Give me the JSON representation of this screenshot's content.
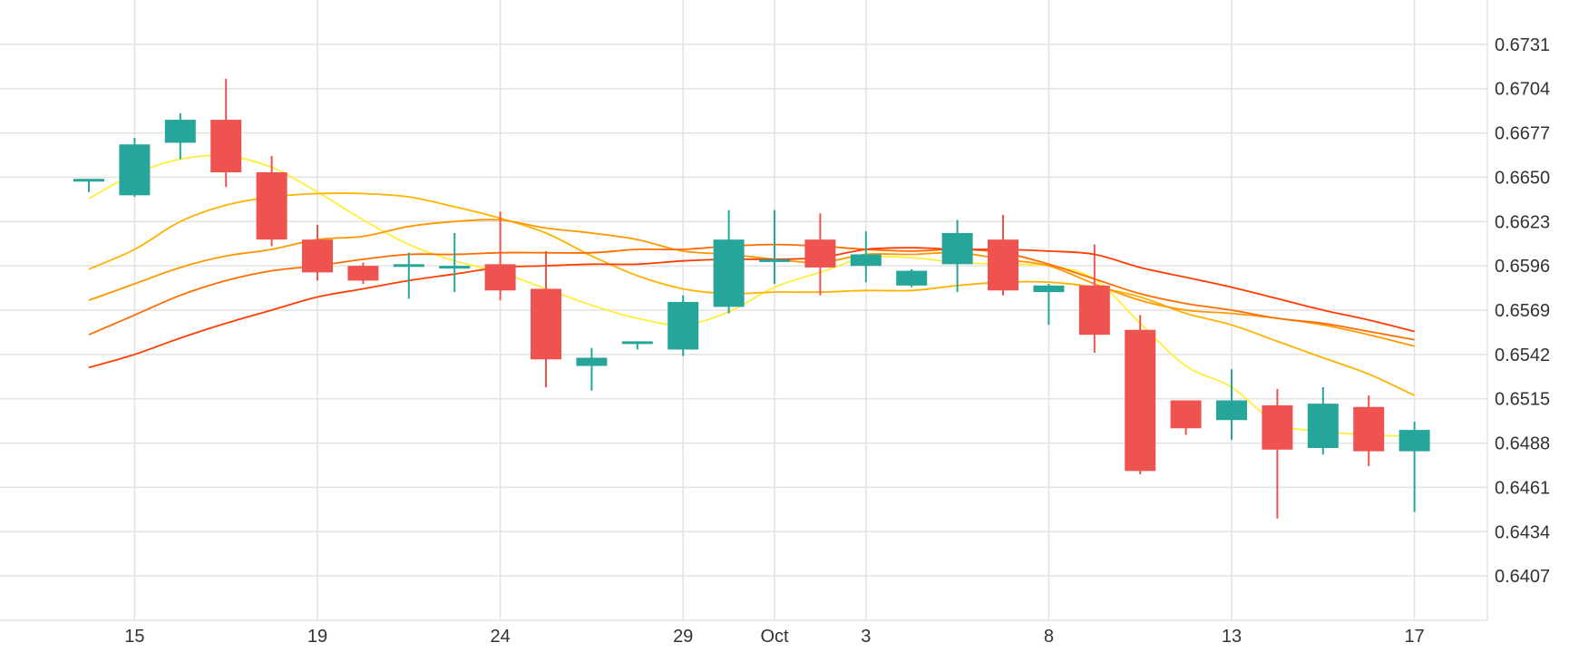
{
  "chart_data": {
    "type": "candlestick",
    "x_ticks": [
      {
        "label": "15",
        "index": 1
      },
      {
        "label": "19",
        "index": 5
      },
      {
        "label": "24",
        "index": 9
      },
      {
        "label": "29",
        "index": 13
      },
      {
        "label": "Oct",
        "index": 15
      },
      {
        "label": "3",
        "index": 17
      },
      {
        "label": "8",
        "index": 21
      },
      {
        "label": "13",
        "index": 25
      },
      {
        "label": "17",
        "index": 29
      }
    ],
    "y_ticks": [
      "0.6731",
      "0.6704",
      "0.6677",
      "0.6650",
      "0.6623",
      "0.6596",
      "0.6569",
      "0.6542",
      "0.6515",
      "0.6488",
      "0.6461",
      "0.6434",
      "0.6407"
    ],
    "ylim": [
      0.638,
      0.6758
    ],
    "grid": true,
    "colors": {
      "up": "#26a69a",
      "down": "#ef5350",
      "grid": "#e3e3e3"
    },
    "candles": [
      {
        "o": 0.6648,
        "h": 0.6649,
        "l": 0.6641,
        "c": 0.6649
      },
      {
        "o": 0.6639,
        "h": 0.6674,
        "l": 0.6638,
        "c": 0.667
      },
      {
        "o": 0.6671,
        "h": 0.6689,
        "l": 0.6661,
        "c": 0.6685
      },
      {
        "o": 0.6685,
        "h": 0.671,
        "l": 0.6644,
        "c": 0.6653
      },
      {
        "o": 0.6653,
        "h": 0.6663,
        "l": 0.6608,
        "c": 0.6612
      },
      {
        "o": 0.6612,
        "h": 0.6621,
        "l": 0.6587,
        "c": 0.6592
      },
      {
        "o": 0.6596,
        "h": 0.6598,
        "l": 0.6585,
        "c": 0.6587
      },
      {
        "o": 0.6596,
        "h": 0.6604,
        "l": 0.6576,
        "c": 0.6597
      },
      {
        "o": 0.6596,
        "h": 0.6616,
        "l": 0.658,
        "c": 0.6596
      },
      {
        "o": 0.6597,
        "h": 0.6629,
        "l": 0.6575,
        "c": 0.6581
      },
      {
        "o": 0.6582,
        "h": 0.6605,
        "l": 0.6522,
        "c": 0.6539
      },
      {
        "o": 0.6535,
        "h": 0.6546,
        "l": 0.652,
        "c": 0.654
      },
      {
        "o": 0.6549,
        "h": 0.655,
        "l": 0.6545,
        "c": 0.655
      },
      {
        "o": 0.6545,
        "h": 0.6578,
        "l": 0.6541,
        "c": 0.6574
      },
      {
        "o": 0.6571,
        "h": 0.663,
        "l": 0.6567,
        "c": 0.6612
      },
      {
        "o": 0.66,
        "h": 0.663,
        "l": 0.6585,
        "c": 0.66
      },
      {
        "o": 0.6612,
        "h": 0.6628,
        "l": 0.6578,
        "c": 0.6595
      },
      {
        "o": 0.6596,
        "h": 0.6617,
        "l": 0.6586,
        "c": 0.6603
      },
      {
        "o": 0.6584,
        "h": 0.6594,
        "l": 0.6583,
        "c": 0.6593
      },
      {
        "o": 0.6597,
        "h": 0.6624,
        "l": 0.658,
        "c": 0.6616
      },
      {
        "o": 0.6612,
        "h": 0.6627,
        "l": 0.6578,
        "c": 0.6581
      },
      {
        "o": 0.658,
        "h": 0.6585,
        "l": 0.656,
        "c": 0.6584
      },
      {
        "o": 0.6584,
        "h": 0.6609,
        "l": 0.6543,
        "c": 0.6554
      },
      {
        "o": 0.6557,
        "h": 0.6566,
        "l": 0.6469,
        "c": 0.6471
      },
      {
        "o": 0.6514,
        "h": 0.6514,
        "l": 0.6493,
        "c": 0.6497
      },
      {
        "o": 0.6502,
        "h": 0.6533,
        "l": 0.649,
        "c": 0.6514
      },
      {
        "o": 0.6511,
        "h": 0.6521,
        "l": 0.6442,
        "c": 0.6484
      },
      {
        "o": 0.6485,
        "h": 0.6522,
        "l": 0.6481,
        "c": 0.6512
      },
      {
        "o": 0.651,
        "h": 0.6517,
        "l": 0.6474,
        "c": 0.6483
      },
      {
        "o": 0.6483,
        "h": 0.6501,
        "l": 0.6446,
        "c": 0.6496
      }
    ],
    "moving_averages": [
      {
        "color": "#ffef3a",
        "values": [
          0.6637,
          0.6652,
          0.6661,
          0.6663,
          0.6656,
          0.6641,
          0.6624,
          0.6609,
          0.6599,
          0.6592,
          0.6582,
          0.6572,
          0.6564,
          0.656,
          0.6568,
          0.6583,
          0.6592,
          0.6601,
          0.6601,
          0.6598,
          0.6597,
          0.6596,
          0.6588,
          0.6561,
          0.6535,
          0.6522,
          0.65,
          0.6495,
          0.6493,
          0.6492
        ]
      },
      {
        "color": "#ffb300",
        "values": [
          0.6594,
          0.6606,
          0.6623,
          0.6633,
          0.6638,
          0.664,
          0.664,
          0.6638,
          0.6632,
          0.6625,
          0.6616,
          0.6602,
          0.659,
          0.6582,
          0.6579,
          0.658,
          0.658,
          0.6581,
          0.6581,
          0.6584,
          0.6586,
          0.6586,
          0.6583,
          0.6577,
          0.6567,
          0.656,
          0.655,
          0.654,
          0.653,
          0.6517
        ]
      },
      {
        "color": "#ff9800",
        "values": [
          0.6575,
          0.6585,
          0.6595,
          0.6602,
          0.6606,
          0.6612,
          0.6614,
          0.662,
          0.6623,
          0.6624,
          0.6619,
          0.6616,
          0.6612,
          0.6605,
          0.6603,
          0.66,
          0.6598,
          0.6603,
          0.6603,
          0.6604,
          0.66,
          0.6596,
          0.6585,
          0.6575,
          0.6569,
          0.6567,
          0.6564,
          0.656,
          0.6554,
          0.6547
        ]
      },
      {
        "color": "#ff6d00",
        "values": [
          0.6554,
          0.6566,
          0.6578,
          0.6587,
          0.6593,
          0.6596,
          0.66,
          0.6603,
          0.6603,
          0.6604,
          0.6604,
          0.6604,
          0.6606,
          0.6606,
          0.6608,
          0.6609,
          0.6608,
          0.6606,
          0.6605,
          0.6606,
          0.6604,
          0.6597,
          0.6588,
          0.6579,
          0.6573,
          0.6569,
          0.6564,
          0.6561,
          0.6556,
          0.6551
        ]
      },
      {
        "color": "#ff3d00",
        "values": [
          0.6534,
          0.6542,
          0.6552,
          0.6561,
          0.6569,
          0.6577,
          0.6582,
          0.6587,
          0.6591,
          0.6595,
          0.6596,
          0.6597,
          0.6597,
          0.6599,
          0.66,
          0.66,
          0.6601,
          0.6606,
          0.6607,
          0.6606,
          0.6606,
          0.6605,
          0.6603,
          0.6595,
          0.6589,
          0.6583,
          0.6576,
          0.6569,
          0.6563,
          0.6556
        ]
      }
    ]
  }
}
